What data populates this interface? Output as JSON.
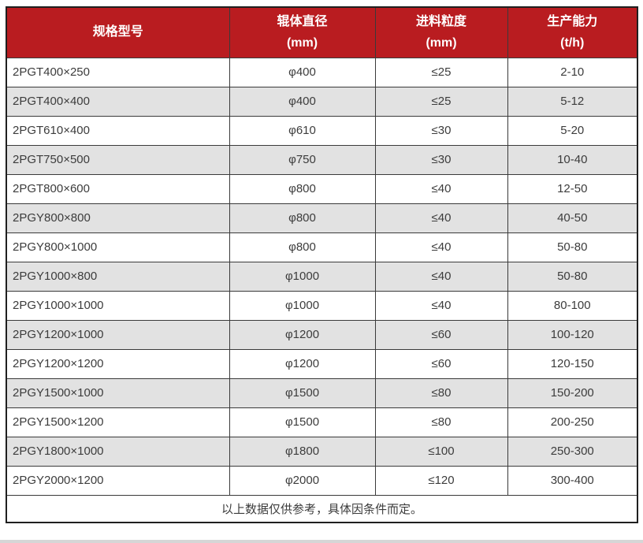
{
  "table": {
    "columns": [
      {
        "title": "规格型号",
        "unit": ""
      },
      {
        "title": "辊体直径",
        "unit": "(mm)"
      },
      {
        "title": "进料粒度",
        "unit": "(mm)"
      },
      {
        "title": "生产能力",
        "unit": "(t/h)"
      }
    ],
    "rows": [
      [
        "2PGT400×250",
        "φ400",
        "≤25",
        "2-10"
      ],
      [
        "2PGT400×400",
        "φ400",
        "≤25",
        "5-12"
      ],
      [
        "2PGT610×400",
        "φ610",
        "≤30",
        "5-20"
      ],
      [
        "2PGT750×500",
        "φ750",
        "≤30",
        "10-40"
      ],
      [
        "2PGT800×600",
        "φ800",
        "≤40",
        "12-50"
      ],
      [
        "2PGY800×800",
        "φ800",
        "≤40",
        "40-50"
      ],
      [
        "2PGY800×1000",
        "φ800",
        "≤40",
        "50-80"
      ],
      [
        "2PGY1000×800",
        "φ1000",
        "≤40",
        "50-80"
      ],
      [
        "2PGY1000×1000",
        "φ1000",
        "≤40",
        "80-100"
      ],
      [
        "2PGY1200×1000",
        "φ1200",
        "≤60",
        "100-120"
      ],
      [
        "2PGY1200×1200",
        "φ1200",
        "≤60",
        "120-150"
      ],
      [
        "2PGY1500×1000",
        "φ1500",
        "≤80",
        "150-200"
      ],
      [
        "2PGY1500×1200",
        "φ1500",
        "≤80",
        "200-250"
      ],
      [
        "2PGY1800×1000",
        "φ1800",
        "≤100",
        "250-300"
      ],
      [
        "2PGY2000×1200",
        "φ2000",
        "≤120",
        "300-400"
      ]
    ],
    "footer_note": "以上数据仅供参考，具体因条件而定。"
  },
  "colors": {
    "header_bg": "#b91c20",
    "header_text": "#ffffff",
    "row_alt_bg": "#e2e2e2",
    "row_bg": "#ffffff",
    "border_inner": "#3a3a3a",
    "border_outer": "#1f1f1f",
    "text": "#3c3c3c",
    "page_edge": "#d6d6d6"
  }
}
